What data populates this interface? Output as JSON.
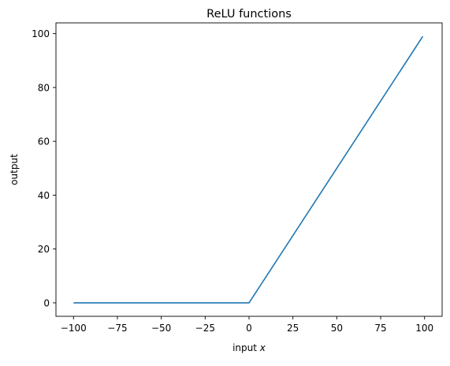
{
  "chart_data": {
    "type": "line",
    "title": "ReLU functions",
    "xlabel_prefix": "input ",
    "xlabel_var": "x",
    "ylabel": "output",
    "xlim": [
      -110,
      110
    ],
    "ylim": [
      -5,
      104
    ],
    "xticks": [
      -100,
      -75,
      -50,
      -25,
      0,
      25,
      50,
      75,
      100
    ],
    "xtick_labels": [
      "−100",
      "−75",
      "−50",
      "−25",
      "0",
      "25",
      "50",
      "75",
      "100"
    ],
    "yticks": [
      0,
      20,
      40,
      60,
      80,
      100
    ],
    "ytick_labels": [
      "0",
      "20",
      "40",
      "60",
      "80",
      "100"
    ],
    "grid": false,
    "series": [
      {
        "color": "#1f77b4",
        "x": [
          -100,
          0,
          99
        ],
        "y": [
          0,
          0,
          99
        ]
      }
    ]
  }
}
